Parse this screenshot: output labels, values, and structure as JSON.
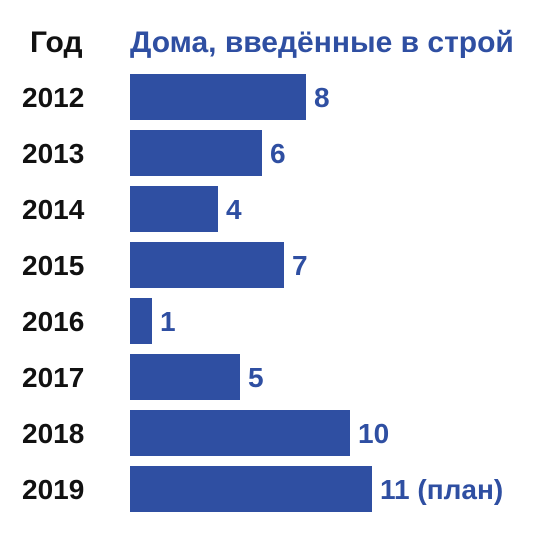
{
  "chart_data": {
    "type": "bar",
    "orientation": "horizontal",
    "category_header": "Год",
    "value_header": "Дома, введённые в строй",
    "categories": [
      "2012",
      "2013",
      "2014",
      "2015",
      "2016",
      "2017",
      "2018",
      "2019"
    ],
    "values": [
      8,
      6,
      4,
      7,
      1,
      5,
      10,
      11
    ],
    "value_labels": [
      "8",
      "6",
      "4",
      "7",
      "1",
      "5",
      "10",
      "11 (план)"
    ],
    "xlim": [
      0,
      11
    ],
    "grid": false,
    "legend": "none",
    "colors": {
      "bar": "#2f4fa2",
      "value_text": "#2f4fa2",
      "header_text": "#2f4fa2",
      "year_text": "#111111"
    }
  }
}
